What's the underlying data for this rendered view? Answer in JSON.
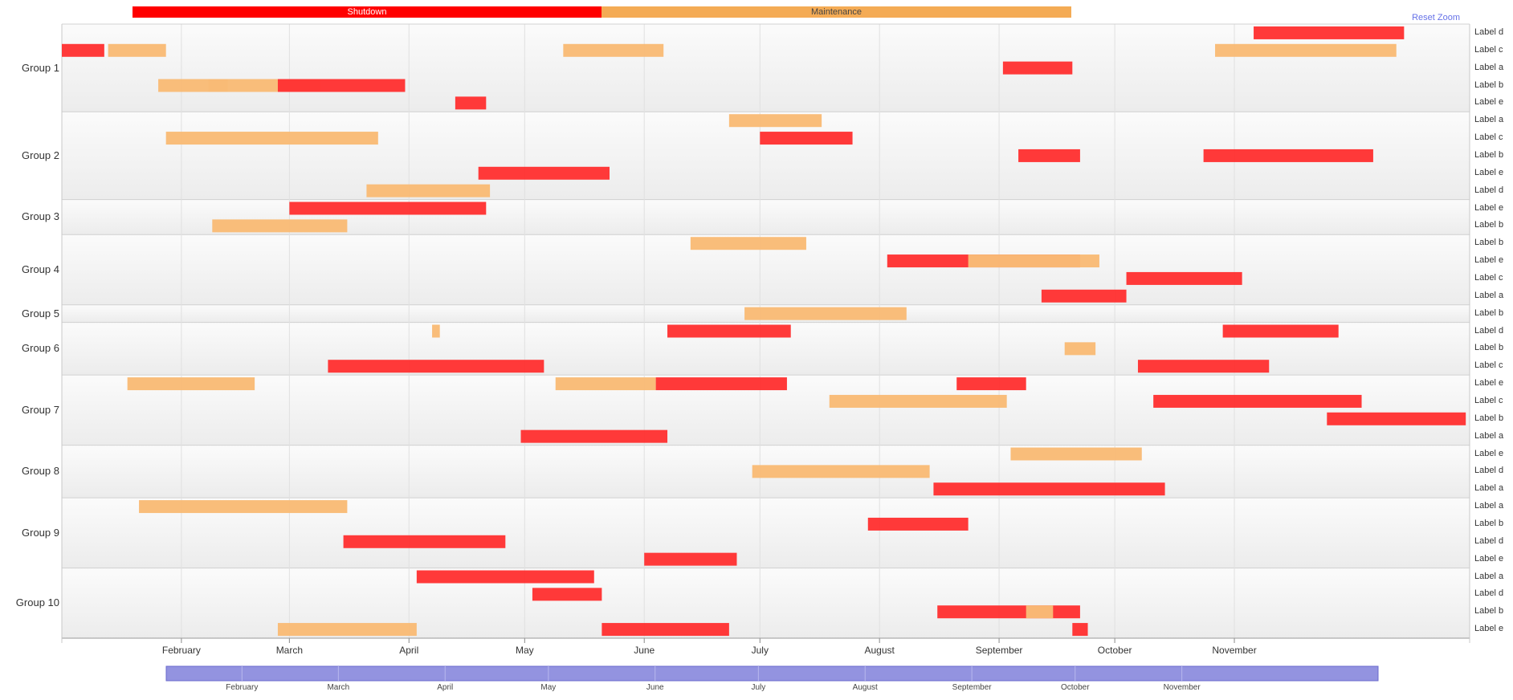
{
  "legend": {
    "shutdown_label": "Shutdown",
    "maintenance_label": "Maintenance",
    "shutdown_color": "#ff0000",
    "maintenance_color": "#f4ab55"
  },
  "reset_zoom_label": "Reset Zoom",
  "colors": {
    "shutdown": "#ff3333",
    "maintenance": "#f9bb76",
    "navigator": "#9393e0"
  },
  "chart_data": {
    "type": "gantt",
    "x_axis": {
      "months": [
        "February",
        "March",
        "April",
        "May",
        "June",
        "July",
        "August",
        "September",
        "October",
        "November"
      ]
    },
    "navigator_months": [
      "February",
      "March",
      "April",
      "May",
      "June",
      "July",
      "August",
      "September",
      "October",
      "November"
    ],
    "groups": [
      {
        "name": "Group 1",
        "rows": [
          "Label d",
          "Label c",
          "Label a",
          "Label b",
          "Label e"
        ]
      },
      {
        "name": "Group 2",
        "rows": [
          "Label a",
          "Label c",
          "Label b",
          "Label e",
          "Label d"
        ]
      },
      {
        "name": "Group 3",
        "rows": [
          "Label e",
          "Label b"
        ]
      },
      {
        "name": "Group 4",
        "rows": [
          "Label b",
          "Label e",
          "Label c",
          "Label a"
        ]
      },
      {
        "name": "Group 5",
        "rows": [
          "Label b"
        ]
      },
      {
        "name": "Group 6",
        "rows": [
          "Label d",
          "Label b",
          "Label c"
        ]
      },
      {
        "name": "Group 7",
        "rows": [
          "Label e",
          "Label c",
          "Label b",
          "Label a"
        ]
      },
      {
        "name": "Group 8",
        "rows": [
          "Label e",
          "Label d",
          "Label a"
        ]
      },
      {
        "name": "Group 9",
        "rows": [
          "Label a",
          "Label b",
          "Label d",
          "Label e"
        ]
      },
      {
        "name": "Group 10",
        "rows": [
          "Label a",
          "Label d",
          "Label b",
          "Label e"
        ]
      }
    ],
    "tasks": [
      {
        "row": 0,
        "type": "shutdown",
        "start": "2021-11-06",
        "end": "2021-12-15"
      },
      {
        "row": 1,
        "type": "shutdown",
        "start": "2021-01-01",
        "end": "2021-01-12"
      },
      {
        "row": 1,
        "type": "maintenance",
        "start": "2021-01-13",
        "end": "2021-01-28"
      },
      {
        "row": 1,
        "type": "maintenance",
        "start": "2021-05-11",
        "end": "2021-06-06"
      },
      {
        "row": 1,
        "type": "maintenance",
        "start": "2021-10-27",
        "end": "2021-12-13"
      },
      {
        "row": 2,
        "type": "shutdown",
        "start": "2021-09-02",
        "end": "2021-09-20"
      },
      {
        "row": 3,
        "type": "maintenance",
        "start": "2021-01-26",
        "end": "2021-02-13"
      },
      {
        "row": 3,
        "type": "maintenance",
        "start": "2021-02-08",
        "end": "2021-03-09"
      },
      {
        "row": 3,
        "type": "shutdown",
        "start": "2021-02-26",
        "end": "2021-03-31"
      },
      {
        "row": 4,
        "type": "shutdown",
        "start": "2021-04-13",
        "end": "2021-04-21"
      },
      {
        "row": 5,
        "type": "maintenance",
        "start": "2021-06-23",
        "end": "2021-07-17"
      },
      {
        "row": 6,
        "type": "maintenance",
        "start": "2021-01-28",
        "end": "2021-03-24"
      },
      {
        "row": 6,
        "type": "shutdown",
        "start": "2021-07-01",
        "end": "2021-07-25"
      },
      {
        "row": 7,
        "type": "shutdown",
        "start": "2021-09-06",
        "end": "2021-09-22"
      },
      {
        "row": 7,
        "type": "shutdown",
        "start": "2021-10-24",
        "end": "2021-12-07"
      },
      {
        "row": 8,
        "type": "shutdown",
        "start": "2021-04-19",
        "end": "2021-05-23"
      },
      {
        "row": 9,
        "type": "maintenance",
        "start": "2021-03-21",
        "end": "2021-04-22"
      },
      {
        "row": 10,
        "type": "shutdown",
        "start": "2021-03-01",
        "end": "2021-04-21"
      },
      {
        "row": 11,
        "type": "maintenance",
        "start": "2021-02-09",
        "end": "2021-03-16"
      },
      {
        "row": 12,
        "type": "maintenance",
        "start": "2021-06-13",
        "end": "2021-07-13"
      },
      {
        "row": 13,
        "type": "shutdown",
        "start": "2021-08-03",
        "end": "2021-09-22"
      },
      {
        "row": 13,
        "type": "maintenance",
        "start": "2021-08-24",
        "end": "2021-09-27"
      },
      {
        "row": 14,
        "type": "shutdown",
        "start": "2021-10-04",
        "end": "2021-11-03"
      },
      {
        "row": 15,
        "type": "shutdown",
        "start": "2021-09-12",
        "end": "2021-10-04"
      },
      {
        "row": 16,
        "type": "maintenance",
        "start": "2021-06-27",
        "end": "2021-08-08"
      },
      {
        "row": 17,
        "type": "maintenance",
        "start": "2021-04-07",
        "end": "2021-04-09"
      },
      {
        "row": 17,
        "type": "shutdown",
        "start": "2021-06-07",
        "end": "2021-07-09"
      },
      {
        "row": 17,
        "type": "shutdown",
        "start": "2021-10-29",
        "end": "2021-11-28"
      },
      {
        "row": 18,
        "type": "maintenance",
        "start": "2021-09-18",
        "end": "2021-09-26"
      },
      {
        "row": 19,
        "type": "shutdown",
        "start": "2021-03-11",
        "end": "2021-05-06"
      },
      {
        "row": 19,
        "type": "shutdown",
        "start": "2021-10-07",
        "end": "2021-11-10"
      },
      {
        "row": 20,
        "type": "maintenance",
        "start": "2021-01-18",
        "end": "2021-02-20"
      },
      {
        "row": 20,
        "type": "maintenance",
        "start": "2021-05-09",
        "end": "2021-06-04"
      },
      {
        "row": 20,
        "type": "shutdown",
        "start": "2021-06-04",
        "end": "2021-07-08"
      },
      {
        "row": 20,
        "type": "shutdown",
        "start": "2021-08-21",
        "end": "2021-09-08"
      },
      {
        "row": 21,
        "type": "maintenance",
        "start": "2021-07-19",
        "end": "2021-09-03"
      },
      {
        "row": 21,
        "type": "shutdown",
        "start": "2021-10-11",
        "end": "2021-12-04"
      },
      {
        "row": 22,
        "type": "shutdown",
        "start": "2021-11-25",
        "end": "2021-12-31"
      },
      {
        "row": 23,
        "type": "shutdown",
        "start": "2021-04-30",
        "end": "2021-06-07"
      },
      {
        "row": 24,
        "type": "maintenance",
        "start": "2021-09-04",
        "end": "2021-10-08"
      },
      {
        "row": 25,
        "type": "maintenance",
        "start": "2021-06-29",
        "end": "2021-08-14"
      },
      {
        "row": 26,
        "type": "shutdown",
        "start": "2021-08-15",
        "end": "2021-10-14"
      },
      {
        "row": 27,
        "type": "maintenance",
        "start": "2021-01-21",
        "end": "2021-03-16"
      },
      {
        "row": 28,
        "type": "shutdown",
        "start": "2021-07-29",
        "end": "2021-08-24"
      },
      {
        "row": 29,
        "type": "shutdown",
        "start": "2021-03-15",
        "end": "2021-04-26"
      },
      {
        "row": 30,
        "type": "shutdown",
        "start": "2021-06-01",
        "end": "2021-06-25"
      },
      {
        "row": 31,
        "type": "shutdown",
        "start": "2021-04-03",
        "end": "2021-05-19"
      },
      {
        "row": 32,
        "type": "shutdown",
        "start": "2021-05-03",
        "end": "2021-05-21"
      },
      {
        "row": 33,
        "type": "shutdown",
        "start": "2021-08-16",
        "end": "2021-09-22"
      },
      {
        "row": 33,
        "type": "maintenance",
        "start": "2021-09-08",
        "end": "2021-09-15"
      },
      {
        "row": 34,
        "type": "maintenance",
        "start": "2021-02-26",
        "end": "2021-04-03"
      },
      {
        "row": 34,
        "type": "shutdown",
        "start": "2021-05-21",
        "end": "2021-06-23"
      },
      {
        "row": 34,
        "type": "shutdown",
        "start": "2021-09-20",
        "end": "2021-09-24"
      }
    ]
  }
}
